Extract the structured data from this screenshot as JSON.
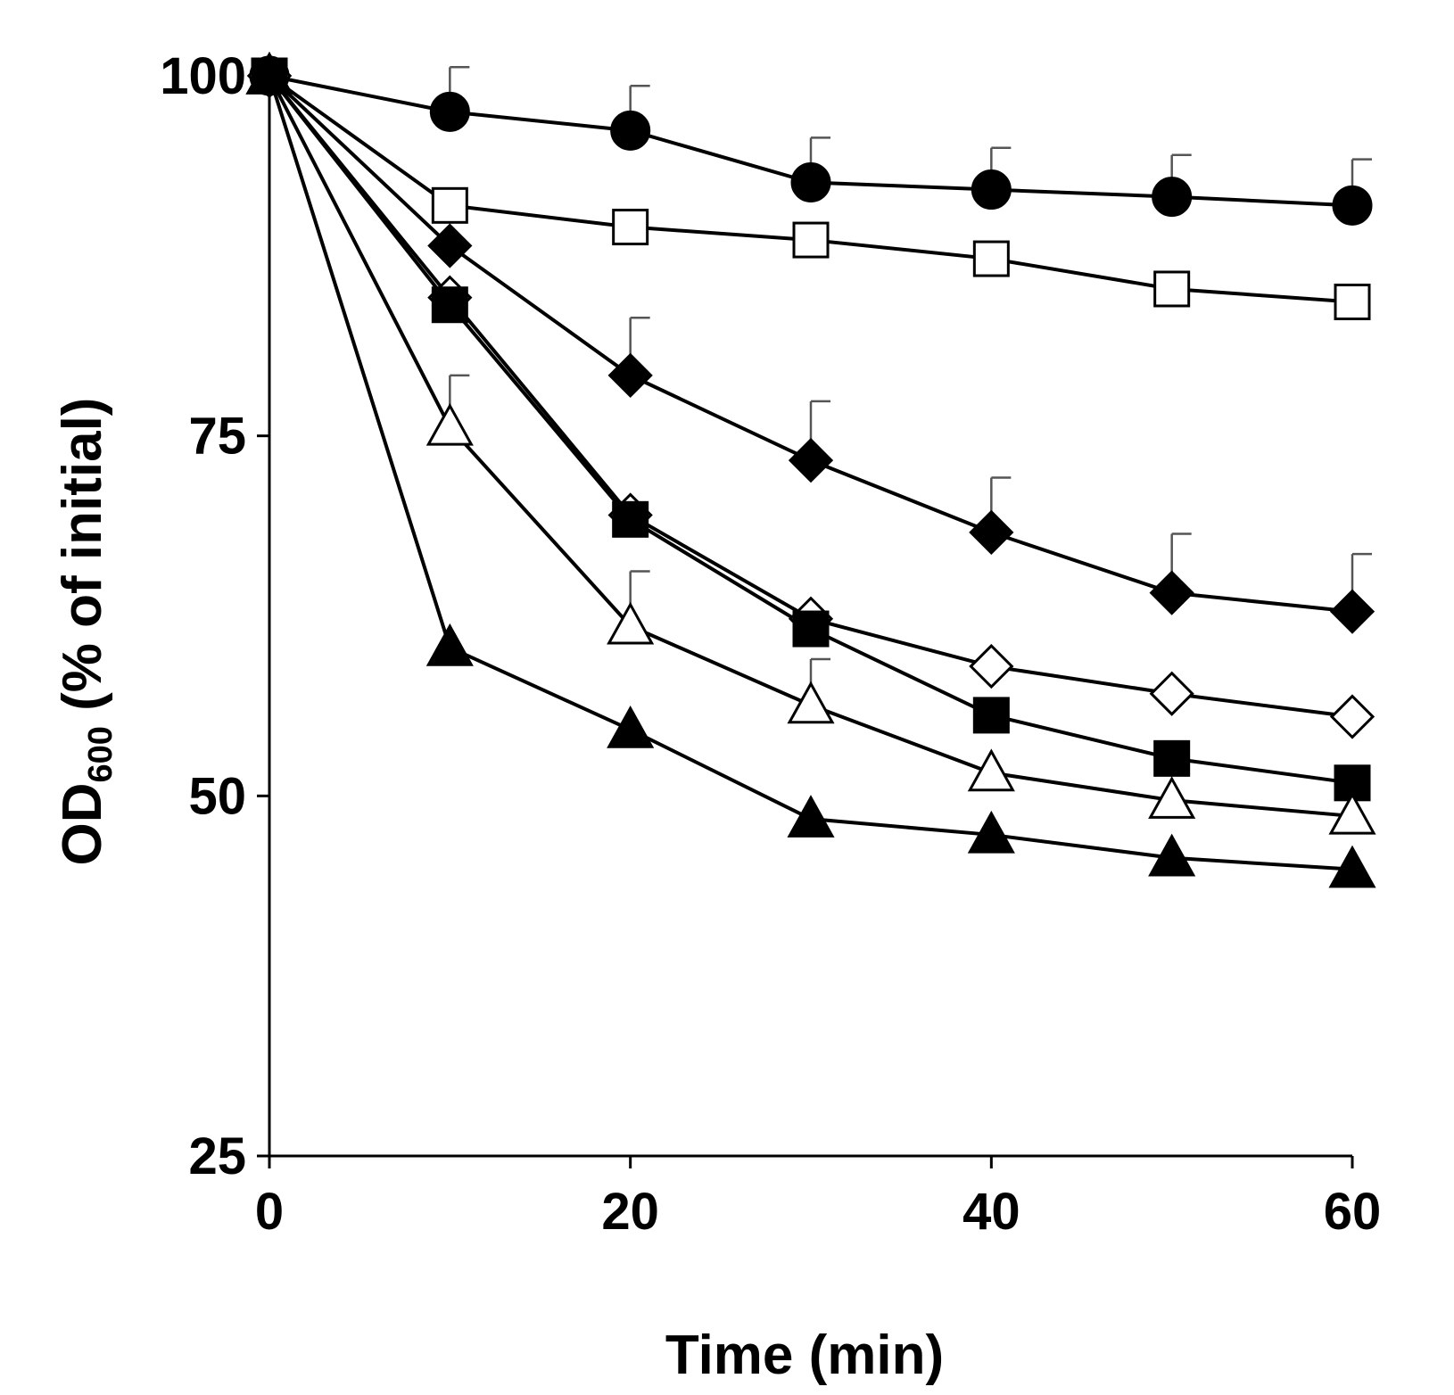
{
  "chart_data": {
    "type": "line",
    "title": "",
    "xlabel": "Time (min)",
    "ylabel": {
      "prefix": "OD",
      "subscript": "600",
      "suffix": " (% of initial)"
    },
    "xlim": [
      0,
      60
    ],
    "ylim": [
      25,
      100
    ],
    "xticks": [
      0,
      20,
      40,
      60
    ],
    "yticks": [
      25,
      50,
      75,
      100
    ],
    "x": [
      0,
      10,
      20,
      30,
      40,
      50,
      60
    ],
    "grid": false,
    "legend": "none",
    "series": [
      {
        "name": "filled-circle",
        "marker": "circle",
        "filled": true,
        "values": [
          100,
          97.5,
          96.2,
          92.6,
          92.1,
          91.6,
          91.0
        ],
        "errors": [
          0,
          3.1,
          3.1,
          3.1,
          2.9,
          2.9,
          3.2
        ]
      },
      {
        "name": "open-square",
        "marker": "square",
        "filled": false,
        "values": [
          100,
          91.0,
          89.5,
          88.6,
          87.3,
          85.2,
          84.3
        ],
        "errors": []
      },
      {
        "name": "filled-diamond",
        "marker": "diamond",
        "filled": true,
        "values": [
          100,
          88.2,
          79.2,
          73.3,
          68.3,
          64.1,
          62.8
        ],
        "errors": [
          0,
          0,
          4.0,
          4.1,
          3.8,
          4.1,
          4.0
        ]
      },
      {
        "name": "open-diamond",
        "marker": "diamond",
        "filled": false,
        "values": [
          100,
          84.6,
          69.5,
          62.3,
          59.0,
          57.1,
          55.5
        ],
        "errors": []
      },
      {
        "name": "filled-square",
        "marker": "square",
        "filled": true,
        "values": [
          100,
          84.1,
          69.2,
          61.6,
          55.6,
          52.6,
          50.9
        ],
        "errors": []
      },
      {
        "name": "open-triangle",
        "marker": "triangle",
        "filled": false,
        "values": [
          100,
          75.6,
          61.8,
          56.3,
          51.6,
          49.7,
          48.6
        ],
        "errors": [
          0,
          3.6,
          3.8,
          3.2,
          0,
          0,
          0
        ]
      },
      {
        "name": "filled-triangle",
        "marker": "triangle",
        "filled": true,
        "values": [
          100,
          60.3,
          54.6,
          48.4,
          47.3,
          45.7,
          44.9
        ],
        "errors": []
      }
    ]
  }
}
